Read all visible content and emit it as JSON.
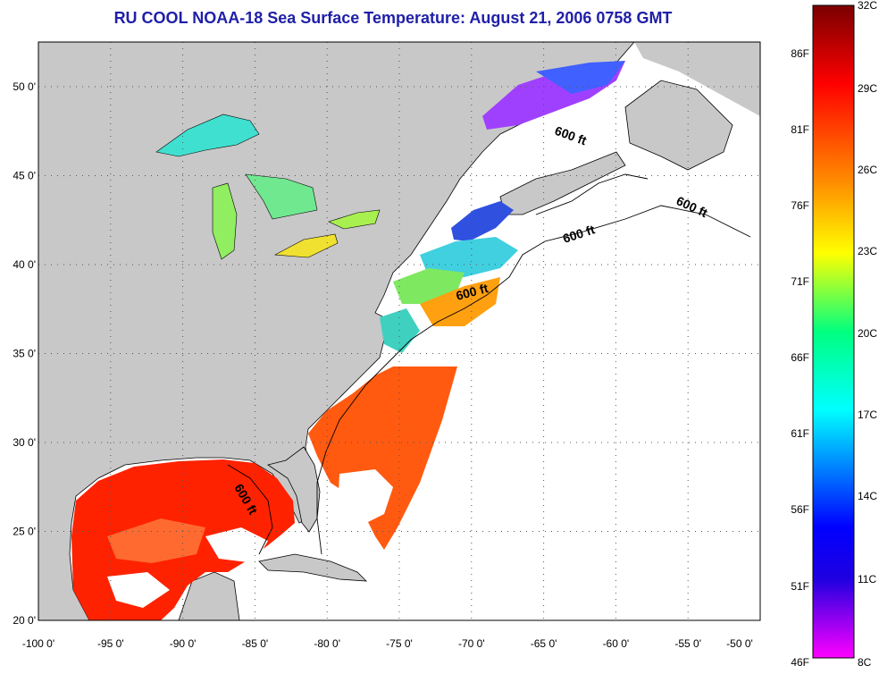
{
  "title": "RU COOL  NOAA-18  Sea Surface Temperature:  August 21, 2006 0758 GMT",
  "map": {
    "lon_range": [
      -100,
      -50
    ],
    "lat_range": [
      20,
      52.5
    ],
    "lon_ticks": [
      "-100 0'",
      "-95 0'",
      "-90 0'",
      "-85 0'",
      "-80 0'",
      "-75 0'",
      "-70 0'",
      "-65 0'",
      "-60 0'",
      "-55 0'",
      "-50 0'"
    ],
    "lat_ticks": [
      "20 0'",
      "25 0'",
      "30 0'",
      "35 0'",
      "40 0'",
      "45 0'",
      "50 0'"
    ],
    "contour_labels": [
      "600 ft",
      "600 ft",
      "600 ft",
      "600 ft",
      "600 ft"
    ],
    "land_color": "#c8c8c8",
    "nodata_color": "#ffffff",
    "regions": [
      "Great Lakes",
      "Gulf of Mexico",
      "Atlantic Ocean",
      "Gulf of St. Lawrence",
      "Gulf of Maine"
    ]
  },
  "colorbar": {
    "celsius_labels": [
      "32C",
      "29C",
      "26C",
      "23C",
      "20C",
      "17C",
      "14C",
      "11C",
      "8C"
    ],
    "fahrenheit_labels": [
      "86F",
      "81F",
      "76F",
      "71F",
      "66F",
      "61F",
      "56F",
      "51F",
      "46F"
    ],
    "colors": [
      "#7a0000",
      "#ff0000",
      "#ff8c00",
      "#ffff00",
      "#00ff80",
      "#00ffff",
      "#0000ff",
      "#ff00ff"
    ]
  }
}
